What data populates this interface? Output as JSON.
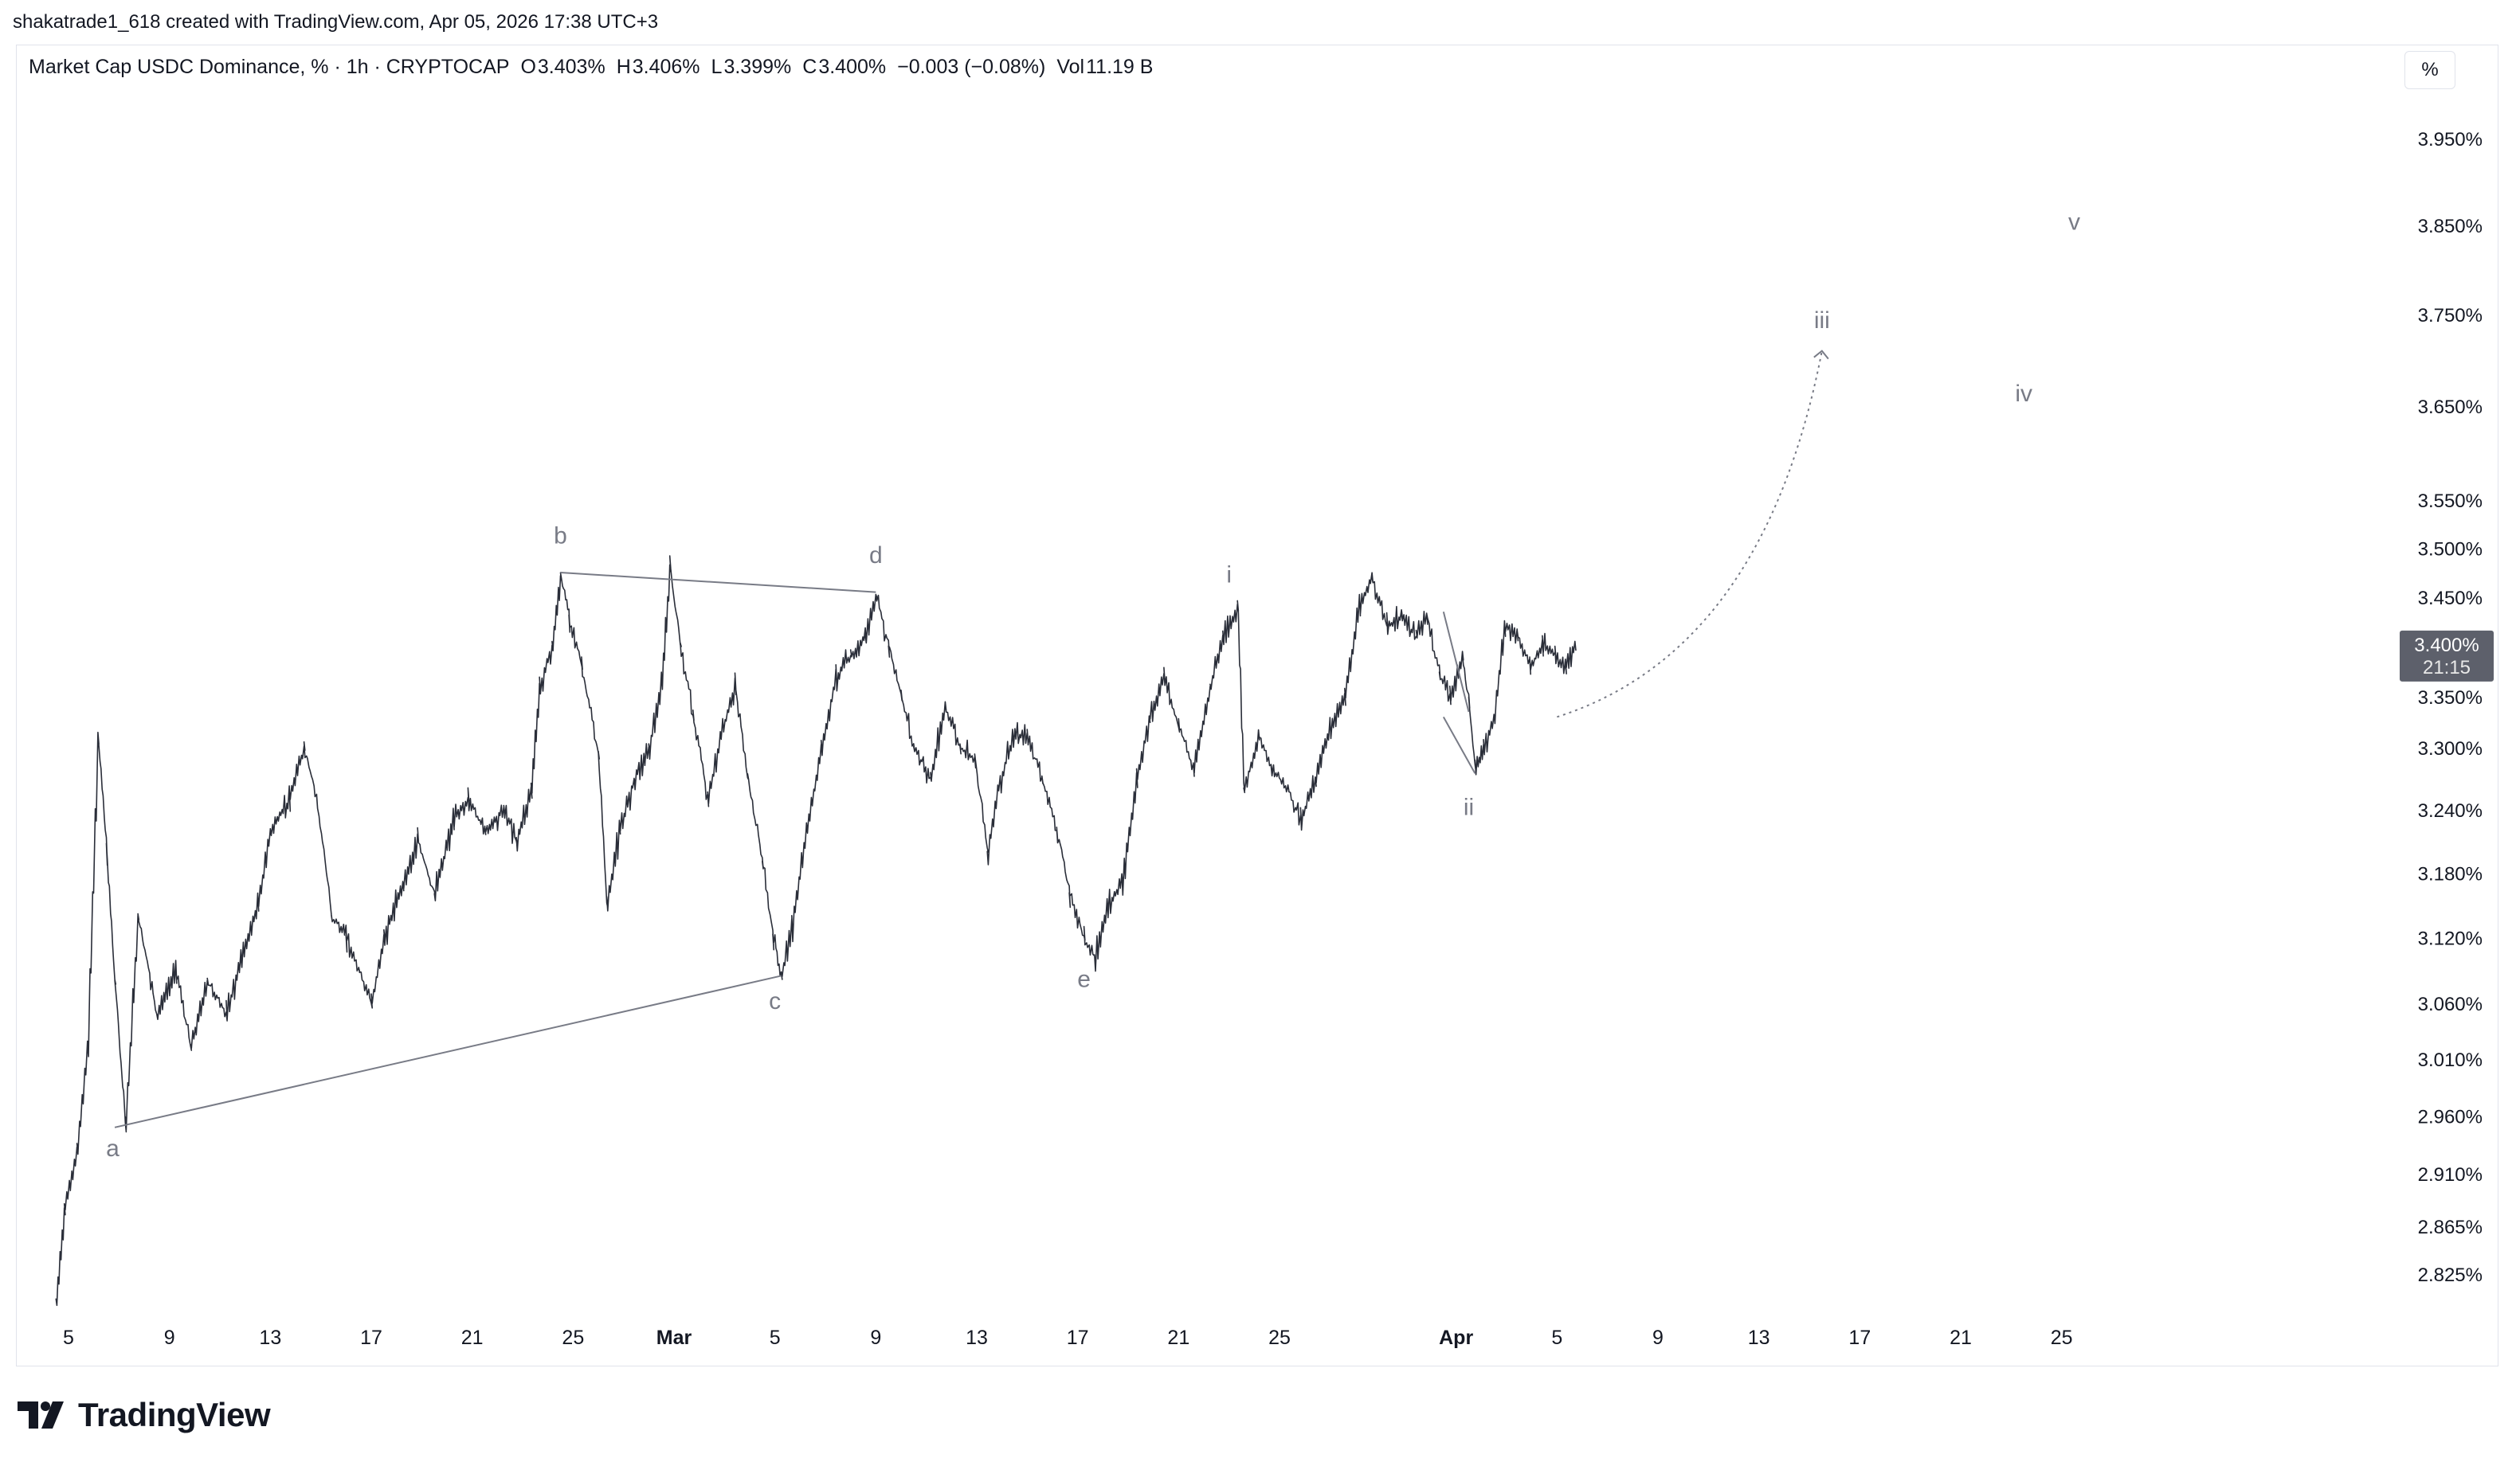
{
  "credit": "shakatrade1_618 created with TradingView.com, Apr 05, 2026 17:38 UTC+3",
  "legend": {
    "symbol": "Market Cap USDC Dominance, % · 1h · CRYPTOCAP",
    "open_label": "O",
    "open": "3.403%",
    "high_label": "H",
    "high": "3.406%",
    "low_label": "L",
    "low": "3.399%",
    "close_label": "C",
    "close": "3.400%",
    "change": "−0.003 (−0.08%)",
    "vol_label": "Vol",
    "vol": "11.19 B"
  },
  "unit_button": "%",
  "price_tag": {
    "price": "3.400%",
    "countdown": "21:15",
    "value": 3.4
  },
  "brand": "TradingView",
  "colors": {
    "candle": "#2a2e39",
    "drawing": "#787b86",
    "label": "#787b86",
    "tag_bg": "#5d606b",
    "grid_text": "#131722"
  },
  "chart_data": {
    "type": "line",
    "title": "Market Cap USDC Dominance, % · 1h · CRYPTOCAP",
    "y_scale": "log",
    "ylim": [
      2.8,
      4.0
    ],
    "y_ticks": [
      {
        "value": 3.95,
        "label": "3.950%"
      },
      {
        "value": 3.85,
        "label": "3.850%"
      },
      {
        "value": 3.75,
        "label": "3.750%"
      },
      {
        "value": 3.65,
        "label": "3.650%"
      },
      {
        "value": 3.55,
        "label": "3.550%"
      },
      {
        "value": 3.5,
        "label": "3.500%"
      },
      {
        "value": 3.45,
        "label": "3.450%"
      },
      {
        "value": 3.35,
        "label": "3.350%"
      },
      {
        "value": 3.3,
        "label": "3.300%"
      },
      {
        "value": 3.24,
        "label": "3.240%"
      },
      {
        "value": 3.18,
        "label": "3.180%"
      },
      {
        "value": 3.12,
        "label": "3.120%"
      },
      {
        "value": 3.06,
        "label": "3.060%"
      },
      {
        "value": 3.01,
        "label": "3.010%"
      },
      {
        "value": 2.96,
        "label": "2.960%"
      },
      {
        "value": 2.91,
        "label": "2.910%"
      },
      {
        "value": 2.865,
        "label": "2.865%"
      },
      {
        "value": 2.825,
        "label": "2.825%"
      }
    ],
    "x_ticks": [
      {
        "date": "2026-02-05",
        "label": "5"
      },
      {
        "date": "2026-02-09",
        "label": "9"
      },
      {
        "date": "2026-02-13",
        "label": "13"
      },
      {
        "date": "2026-02-17",
        "label": "17"
      },
      {
        "date": "2026-02-21",
        "label": "21"
      },
      {
        "date": "2026-02-25",
        "label": "25"
      },
      {
        "date": "2026-03-01",
        "label": "Mar",
        "bold": true
      },
      {
        "date": "2026-03-05",
        "label": "5"
      },
      {
        "date": "2026-03-09",
        "label": "9"
      },
      {
        "date": "2026-03-13",
        "label": "13"
      },
      {
        "date": "2026-03-17",
        "label": "17"
      },
      {
        "date": "2026-03-21",
        "label": "21"
      },
      {
        "date": "2026-03-25",
        "label": "25"
      },
      {
        "date": "2026-04-01",
        "label": "Apr",
        "bold": true
      },
      {
        "date": "2026-04-05",
        "label": "5"
      },
      {
        "date": "2026-04-09",
        "label": "9"
      },
      {
        "date": "2026-04-13",
        "label": "13"
      },
      {
        "date": "2026-04-17",
        "label": "17"
      },
      {
        "date": "2026-04-21",
        "label": "21"
      },
      {
        "date": "2026-04-25",
        "label": "25"
      }
    ],
    "price_path": [
      [
        "2026-02-04T12:00",
        2.8
      ],
      [
        "2026-02-04T20:00",
        2.88
      ],
      [
        "2026-02-05T08:00",
        2.93
      ],
      [
        "2026-02-05T18:00",
        3.02
      ],
      [
        "2026-02-06T04:00",
        3.31
      ],
      [
        "2026-02-06T12:00",
        3.2
      ],
      [
        "2026-02-06T20:00",
        3.08
      ],
      [
        "2026-02-07T06:00",
        2.95
      ],
      [
        "2026-02-07T18:00",
        3.14
      ],
      [
        "2026-02-08T12:00",
        3.05
      ],
      [
        "2026-02-09T06:00",
        3.09
      ],
      [
        "2026-02-09T20:00",
        3.02
      ],
      [
        "2026-02-10T12:00",
        3.08
      ],
      [
        "2026-02-11T06:00",
        3.05
      ],
      [
        "2026-02-11T20:00",
        3.1
      ],
      [
        "2026-02-12T12:00",
        3.15
      ],
      [
        "2026-02-13T00:00",
        3.22
      ],
      [
        "2026-02-13T18:00",
        3.25
      ],
      [
        "2026-02-14T08:00",
        3.3
      ],
      [
        "2026-02-14T20:00",
        3.25
      ],
      [
        "2026-02-15T10:00",
        3.14
      ],
      [
        "2026-02-16T00:00",
        3.12
      ],
      [
        "2026-02-16T12:00",
        3.09
      ],
      [
        "2026-02-17T00:00",
        3.06
      ],
      [
        "2026-02-17T12:00",
        3.12
      ],
      [
        "2026-02-18T06:00",
        3.17
      ],
      [
        "2026-02-18T20:00",
        3.21
      ],
      [
        "2026-02-19T12:00",
        3.16
      ],
      [
        "2026-02-20T06:00",
        3.23
      ],
      [
        "2026-02-20T20:00",
        3.25
      ],
      [
        "2026-02-21T12:00",
        3.22
      ],
      [
        "2026-02-22T06:00",
        3.24
      ],
      [
        "2026-02-22T18:00",
        3.21
      ],
      [
        "2026-02-23T08:00",
        3.26
      ],
      [
        "2026-02-23T16:00",
        3.36
      ],
      [
        "2026-02-24T04:00",
        3.4
      ],
      [
        "2026-02-24T12:00",
        3.47
      ],
      [
        "2026-02-24T20:00",
        3.43
      ],
      [
        "2026-02-25T08:00",
        3.38
      ],
      [
        "2026-02-26T00:00",
        3.29
      ],
      [
        "2026-02-26T08:00",
        3.15
      ],
      [
        "2026-02-26T20:00",
        3.22
      ],
      [
        "2026-02-27T10:00",
        3.27
      ],
      [
        "2026-02-28T00:00",
        3.3
      ],
      [
        "2026-02-28T12:00",
        3.36
      ],
      [
        "2026-02-28T20:00",
        3.48
      ],
      [
        "2026-03-01T06:00",
        3.4
      ],
      [
        "2026-03-01T18:00",
        3.33
      ],
      [
        "2026-03-02T08:00",
        3.25
      ],
      [
        "2026-03-02T20:00",
        3.31
      ],
      [
        "2026-03-03T10:00",
        3.36
      ],
      [
        "2026-03-03T22:00",
        3.27
      ],
      [
        "2026-03-04T12:00",
        3.19
      ],
      [
        "2026-03-04T22:00",
        3.12
      ],
      [
        "2026-03-05T06:00",
        3.085
      ],
      [
        "2026-03-05T16:00",
        3.13
      ],
      [
        "2026-03-06T06:00",
        3.22
      ],
      [
        "2026-03-06T20:00",
        3.3
      ],
      [
        "2026-03-07T10:00",
        3.37
      ],
      [
        "2026-03-08T00:00",
        3.39
      ],
      [
        "2026-03-08T14:00",
        3.41
      ],
      [
        "2026-03-09T00:00",
        3.45
      ],
      [
        "2026-03-09T12:00",
        3.4
      ],
      [
        "2026-03-10T00:00",
        3.35
      ],
      [
        "2026-03-10T12:00",
        3.3
      ],
      [
        "2026-03-11T04:00",
        3.27
      ],
      [
        "2026-03-11T18:00",
        3.34
      ],
      [
        "2026-03-12T08:00",
        3.3
      ],
      [
        "2026-03-12T22:00",
        3.29
      ],
      [
        "2026-03-13T10:00",
        3.2
      ],
      [
        "2026-03-13T20:00",
        3.26
      ],
      [
        "2026-03-14T10:00",
        3.31
      ],
      [
        "2026-03-15T00:00",
        3.31
      ],
      [
        "2026-03-15T14:00",
        3.27
      ],
      [
        "2026-03-16T04:00",
        3.22
      ],
      [
        "2026-03-16T16:00",
        3.16
      ],
      [
        "2026-03-17T06:00",
        3.12
      ],
      [
        "2026-03-17T16:00",
        3.1
      ],
      [
        "2026-03-18T04:00",
        3.15
      ],
      [
        "2026-03-18T18:00",
        3.17
      ],
      [
        "2026-03-19T08:00",
        3.27
      ],
      [
        "2026-03-19T20:00",
        3.33
      ],
      [
        "2026-03-20T10:00",
        3.37
      ],
      [
        "2026-03-21T00:00",
        3.32
      ],
      [
        "2026-03-21T14:00",
        3.28
      ],
      [
        "2026-03-22T06:00",
        3.36
      ],
      [
        "2026-03-22T18:00",
        3.41
      ],
      [
        "2026-03-23T08:00",
        3.44
      ],
      [
        "2026-03-23T14:00",
        3.26
      ],
      [
        "2026-03-24T04:00",
        3.31
      ],
      [
        "2026-03-24T16:00",
        3.28
      ],
      [
        "2026-03-25T08:00",
        3.26
      ],
      [
        "2026-03-25T20:00",
        3.23
      ],
      [
        "2026-03-26T10:00",
        3.27
      ],
      [
        "2026-03-27T00:00",
        3.32
      ],
      [
        "2026-03-27T14:00",
        3.35
      ],
      [
        "2026-03-28T04:00",
        3.44
      ],
      [
        "2026-03-28T16:00",
        3.47
      ],
      [
        "2026-03-29T06:00",
        3.42
      ],
      [
        "2026-03-29T20:00",
        3.43
      ],
      [
        "2026-03-30T10:00",
        3.41
      ],
      [
        "2026-03-30T20:00",
        3.43
      ],
      [
        "2026-03-31T08:00",
        3.37
      ],
      [
        "2026-03-31T18:00",
        3.35
      ],
      [
        "2026-04-01T06:00",
        3.39
      ],
      [
        "2026-04-01T12:00",
        3.34
      ],
      [
        "2026-04-01T18:00",
        3.28
      ],
      [
        "2026-04-02T02:00",
        3.3
      ],
      [
        "2026-04-02T12:00",
        3.33
      ],
      [
        "2026-04-02T22:00",
        3.42
      ],
      [
        "2026-04-03T10:00",
        3.41
      ],
      [
        "2026-04-03T22:00",
        3.38
      ],
      [
        "2026-04-04T10:00",
        3.4
      ],
      [
        "2026-04-04T22:00",
        3.39
      ],
      [
        "2026-04-05T08:00",
        3.38
      ],
      [
        "2026-04-05T17:00",
        3.4
      ]
    ],
    "drawings": [
      {
        "type": "line",
        "from": [
          "2026-02-06T20:00",
          2.95
        ],
        "to": [
          "2026-03-05T06:00",
          3.085
        ]
      },
      {
        "type": "line",
        "from": [
          "2026-02-24T12:00",
          3.475
        ],
        "to": [
          "2026-03-09T00:00",
          3.455
        ]
      },
      {
        "type": "line",
        "from": [
          "2026-03-31T12:00",
          3.435
        ],
        "to": [
          "2026-04-01T12:00",
          3.335
        ]
      },
      {
        "type": "line",
        "from": [
          "2026-03-31T12:00",
          3.33
        ],
        "to": [
          "2026-04-01T18:00",
          3.275
        ]
      },
      {
        "type": "curve-dotted",
        "from": [
          "2026-04-05T00:00",
          3.33
        ],
        "to": [
          "2026-04-15T12:00",
          3.71
        ]
      }
    ],
    "wave_labels": [
      {
        "text": "a",
        "at": [
          "2026-02-06T18:00",
          2.925
        ]
      },
      {
        "text": "b",
        "at": [
          "2026-02-24T12:00",
          3.505
        ]
      },
      {
        "text": "c",
        "at": [
          "2026-03-05T00:00",
          3.055
        ]
      },
      {
        "text": "d",
        "at": [
          "2026-03-09T00:00",
          3.485
        ]
      },
      {
        "text": "e",
        "at": [
          "2026-03-17T06:00",
          3.075
        ]
      },
      {
        "text": "i",
        "at": [
          "2026-03-23T00:00",
          3.465
        ]
      },
      {
        "text": "ii",
        "at": [
          "2026-04-01T12:00",
          3.235
        ]
      },
      {
        "text": "iii",
        "at": [
          "2026-04-15T12:00",
          3.735
        ]
      },
      {
        "text": "iv",
        "at": [
          "2026-04-23T12:00",
          3.655
        ]
      },
      {
        "text": "v",
        "at": [
          "2026-04-25T12:00",
          3.845
        ]
      }
    ]
  }
}
